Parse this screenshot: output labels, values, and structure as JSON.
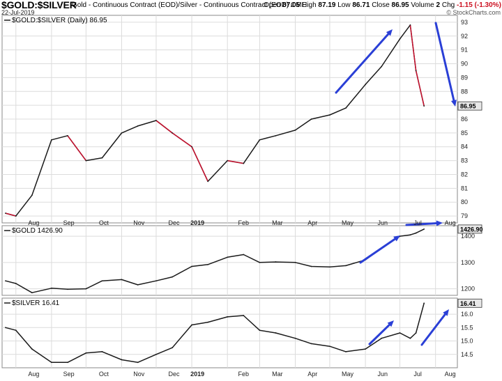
{
  "header": {
    "title": "$GOLD:$SILVER",
    "description": "Gold - Continuous Contract (EOD)/Silver - Continuous Contract (EOD)",
    "exchange": "CME",
    "date": "22-Jul-2019",
    "open_label": "Open",
    "open": "87.05",
    "high_label": "High",
    "high": "87.19",
    "low_label": "Low",
    "low": "86.71",
    "close_label": "Close",
    "close": "86.95",
    "volume_label": "Volume",
    "volume": "2",
    "chg_label": "Chg",
    "chg": "-1.15 (-1.30%)",
    "watermark": "© StockCharts.com"
  },
  "colors": {
    "line": "#1a1a1a",
    "down": "#c8102e",
    "arrow": "#2a3fd6",
    "grid": "#dcdcdc",
    "label_box": "#e8e8e8"
  },
  "month_labels": [
    "Aug",
    "Sep",
    "Oct",
    "Nov",
    "Dec",
    "2019",
    "Feb",
    "Mar",
    "Apr",
    "May",
    "Jun",
    "Jul",
    "Aug"
  ],
  "chart_data": [
    {
      "type": "line",
      "legend": "$GOLD:$SILVER (Daily) 86.95",
      "last_value": "86.95",
      "x": [
        "2018-07-23",
        "2018-08-01",
        "2018-08-15",
        "2018-09-01",
        "2018-09-15",
        "2018-10-01",
        "2018-10-15",
        "2018-11-01",
        "2018-11-15",
        "2018-12-01",
        "2018-12-15",
        "2019-01-01",
        "2019-01-15",
        "2019-02-01",
        "2019-02-15",
        "2019-03-01",
        "2019-03-15",
        "2019-04-01",
        "2019-04-15",
        "2019-05-01",
        "2019-05-15",
        "2019-06-01",
        "2019-06-15",
        "2019-07-01",
        "2019-07-10",
        "2019-07-15",
        "2019-07-22"
      ],
      "values": [
        79.2,
        79.0,
        80.5,
        84.5,
        84.8,
        83.0,
        83.2,
        85.0,
        85.5,
        85.9,
        85.0,
        84.0,
        81.5,
        83.0,
        82.8,
        84.5,
        84.8,
        85.2,
        86.0,
        86.3,
        86.8,
        88.5,
        89.8,
        91.8,
        92.8,
        89.5,
        86.95
      ],
      "yticks": [
        79,
        80,
        81,
        82,
        83,
        84,
        85,
        86,
        87,
        88,
        89,
        90,
        91,
        92,
        93
      ],
      "ylim": [
        78.5,
        93.5
      ]
    },
    {
      "type": "line",
      "legend": "$GOLD 1426.90",
      "last_value": "1426.90",
      "x": [
        "2018-07-23",
        "2018-08-01",
        "2018-08-15",
        "2018-09-01",
        "2018-09-15",
        "2018-10-01",
        "2018-10-15",
        "2018-11-01",
        "2018-11-15",
        "2018-12-01",
        "2018-12-15",
        "2019-01-01",
        "2019-01-15",
        "2019-02-01",
        "2019-02-15",
        "2019-03-01",
        "2019-03-15",
        "2019-04-01",
        "2019-04-15",
        "2019-05-01",
        "2019-05-15",
        "2019-06-01",
        "2019-06-15",
        "2019-07-01",
        "2019-07-10",
        "2019-07-15",
        "2019-07-22"
      ],
      "values": [
        1230,
        1220,
        1185,
        1202,
        1198,
        1200,
        1230,
        1235,
        1215,
        1230,
        1245,
        1285,
        1292,
        1320,
        1330,
        1300,
        1302,
        1300,
        1285,
        1283,
        1288,
        1310,
        1355,
        1400,
        1405,
        1412,
        1427
      ],
      "yticks": [
        1200,
        1300,
        1400
      ],
      "ylim": [
        1175,
        1440
      ]
    },
    {
      "type": "line",
      "legend": "$SILVER 16.41",
      "last_value": "16.41",
      "x": [
        "2018-07-23",
        "2018-08-01",
        "2018-08-15",
        "2018-09-01",
        "2018-09-15",
        "2018-10-01",
        "2018-10-15",
        "2018-11-01",
        "2018-11-15",
        "2018-12-01",
        "2018-12-15",
        "2019-01-01",
        "2019-01-15",
        "2019-02-01",
        "2019-02-15",
        "2019-03-01",
        "2019-03-15",
        "2019-04-01",
        "2019-04-15",
        "2019-05-01",
        "2019-05-15",
        "2019-06-01",
        "2019-06-15",
        "2019-07-01",
        "2019-07-10",
        "2019-07-15",
        "2019-07-22"
      ],
      "values": [
        15.5,
        15.4,
        14.7,
        14.2,
        14.2,
        14.55,
        14.6,
        14.3,
        14.2,
        14.5,
        14.75,
        15.6,
        15.7,
        15.9,
        15.95,
        15.4,
        15.3,
        15.1,
        14.9,
        14.8,
        14.6,
        14.7,
        15.1,
        15.3,
        15.1,
        15.3,
        16.41
      ],
      "yticks": [
        14.5,
        15.0,
        15.5,
        16.0
      ],
      "ylim": [
        14.0,
        16.6
      ]
    }
  ]
}
